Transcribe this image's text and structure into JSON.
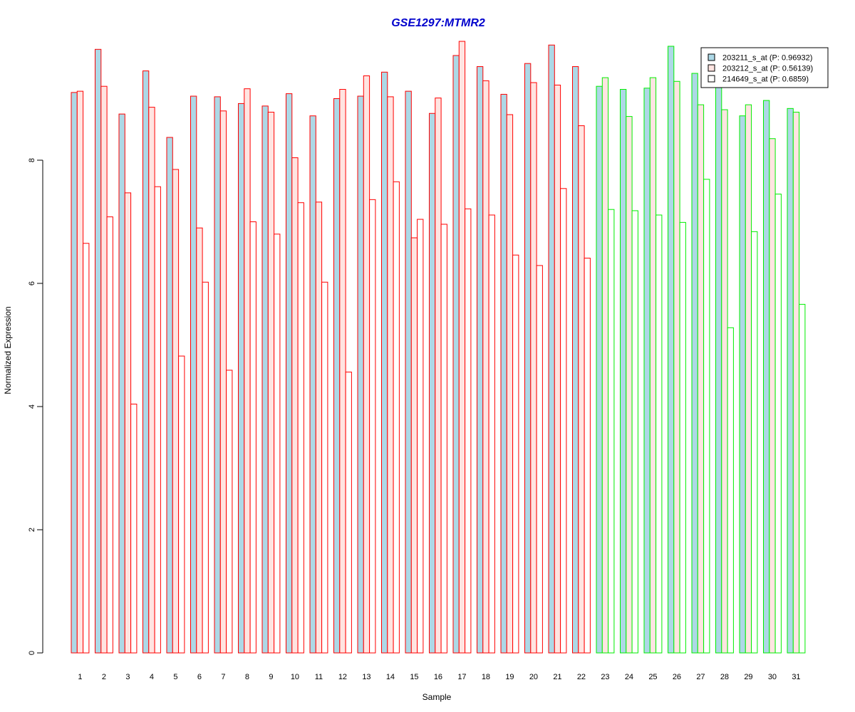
{
  "chart_data": {
    "type": "bar",
    "title": "GSE1297:MTMR2",
    "xlabel": "Sample",
    "ylabel": "Normalized Expression",
    "ylim": [
      0,
      10
    ],
    "yticks": [
      "0",
      "2",
      "4",
      "6",
      "8"
    ],
    "categories": [
      "1",
      "2",
      "3",
      "4",
      "5",
      "6",
      "7",
      "8",
      "9",
      "10",
      "11",
      "12",
      "13",
      "14",
      "15",
      "16",
      "17",
      "18",
      "19",
      "20",
      "21",
      "22",
      "23",
      "24",
      "25",
      "26",
      "27",
      "28",
      "29",
      "30",
      "31"
    ],
    "groups": [
      {
        "range": [
          1,
          22
        ],
        "border_color": "#ff0000"
      },
      {
        "range": [
          23,
          31
        ],
        "border_color": "#00ee00"
      }
    ],
    "series": [
      {
        "name": "203211_s_at (P: 0.96932)",
        "fill": "#add8e6",
        "values": [
          9.1,
          9.8,
          8.75,
          9.45,
          8.37,
          9.04,
          9.03,
          8.92,
          8.88,
          9.08,
          8.72,
          9.0,
          9.04,
          9.43,
          9.12,
          8.76,
          9.7,
          9.52,
          9.07,
          9.57,
          9.87,
          9.52,
          9.2,
          9.15,
          9.17,
          9.85,
          9.41,
          9.22,
          8.72,
          8.97,
          8.84
        ]
      },
      {
        "name": "203212_s_at (P: 0.56139)",
        "fill": "#ffe4e1",
        "values": [
          9.12,
          9.2,
          7.47,
          8.86,
          7.85,
          6.9,
          8.8,
          9.16,
          8.78,
          8.04,
          7.32,
          9.15,
          9.37,
          9.03,
          6.74,
          9.01,
          9.93,
          9.29,
          8.74,
          9.26,
          9.22,
          8.56,
          9.34,
          8.71,
          9.34,
          9.28,
          8.9,
          8.82,
          8.9,
          8.35,
          8.78
        ]
      },
      {
        "name": "214649_s_at (P: 0.6859)",
        "fill": "#ffffff",
        "values": [
          6.65,
          7.08,
          4.04,
          7.57,
          4.82,
          6.02,
          4.59,
          7.0,
          6.8,
          7.31,
          6.02,
          4.56,
          7.36,
          7.65,
          7.04,
          6.96,
          7.21,
          7.11,
          6.46,
          6.29,
          7.54,
          6.41,
          7.2,
          7.18,
          7.11,
          6.99,
          7.69,
          5.28,
          6.84,
          7.45,
          5.66
        ]
      }
    ],
    "legend": "top-right"
  }
}
